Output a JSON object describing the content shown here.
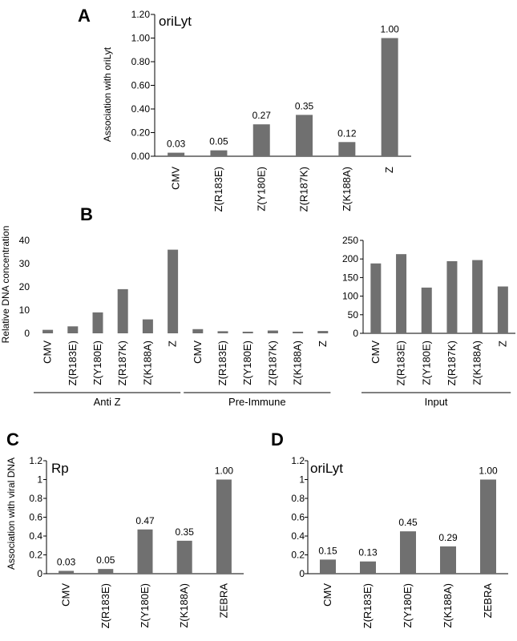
{
  "figure": {
    "bar_color": "#707070",
    "axis_color": "#000000"
  },
  "chart_data": [
    {
      "id": "A",
      "type": "bar",
      "panel_label": "A",
      "inner_label": "oriLyt",
      "ylabel": "Association with oriLyt",
      "xlabel": "",
      "ylim": [
        0,
        1.2
      ],
      "yticks": [
        "0.00",
        "0.20",
        "0.40",
        "0.60",
        "0.80",
        "1.00",
        "1.20"
      ],
      "categories": [
        "CMV",
        "Z(R183E)",
        "Z(Y180E)",
        "Z(R187K)",
        "Z(K188A)",
        "Z"
      ],
      "values": [
        0.03,
        0.05,
        0.27,
        0.35,
        0.12,
        1.0
      ],
      "value_labels": [
        "0.03",
        "0.05",
        "0.27",
        "0.35",
        "0.12",
        "1.00"
      ]
    },
    {
      "id": "B_left",
      "type": "bar",
      "panel_label": "B",
      "ylabel": "Relative DNA concentration",
      "ylim": [
        0,
        40
      ],
      "yticks": [
        "0",
        "10",
        "20",
        "30",
        "40"
      ],
      "categories": [
        "CMV",
        "Z(R183E)",
        "Z(Y180E)",
        "Z(R187K)",
        "Z(K188A)",
        "Z",
        "CMV",
        "Z(R183E)",
        "Z(Y180E)",
        "Z(R187K)",
        "Z(K188A)",
        "Z"
      ],
      "values": [
        1.5,
        3.0,
        9.0,
        19.0,
        6.0,
        36.0,
        1.8,
        0.9,
        0.7,
        1.2,
        0.7,
        1.0
      ],
      "groups": [
        {
          "name": "Anti Z",
          "start": 0,
          "end": 5
        },
        {
          "name": "Pre-Immune",
          "start": 6,
          "end": 11
        }
      ]
    },
    {
      "id": "B_right",
      "type": "bar",
      "ylim": [
        0,
        250
      ],
      "yticks": [
        "0",
        "50",
        "100",
        "150",
        "200",
        "250"
      ],
      "categories": [
        "CMV",
        "Z(R183E)",
        "Z(Y180E)",
        "Z(R187K)",
        "Z(K188A)",
        "Z"
      ],
      "values": [
        188,
        213,
        123,
        194,
        197,
        126
      ],
      "groups": [
        {
          "name": "Input",
          "start": 0,
          "end": 5
        }
      ]
    },
    {
      "id": "C",
      "type": "bar",
      "panel_label": "C",
      "inner_label": "Rp",
      "ylabel": "Association with viral DNA",
      "ylim": [
        0,
        1.2
      ],
      "yticks": [
        "0",
        "0.2",
        "0.4",
        "0.6",
        "0.8",
        "1",
        "1.2"
      ],
      "categories": [
        "CMV",
        "Z(R183E)",
        "Z(Y180E)",
        "Z(K188A)",
        "ZEBRA"
      ],
      "values": [
        0.03,
        0.05,
        0.47,
        0.35,
        1.0
      ],
      "value_labels": [
        "0.03",
        "0.05",
        "0.47",
        "0.35",
        "1.00"
      ]
    },
    {
      "id": "D",
      "type": "bar",
      "panel_label": "D",
      "inner_label": "oriLyt",
      "ylim": [
        0,
        1.2
      ],
      "yticks": [
        "0",
        "0.2",
        "0.4",
        "0.6",
        "0.8",
        "1",
        "1.2"
      ],
      "categories": [
        "CMV",
        "Z(R183E)",
        "Z(Y180E)",
        "Z(K188A)",
        "ZEBRA"
      ],
      "values": [
        0.15,
        0.13,
        0.45,
        0.29,
        1.0
      ],
      "value_labels": [
        "0.15",
        "0.13",
        "0.45",
        "0.29",
        "1.00"
      ]
    }
  ]
}
